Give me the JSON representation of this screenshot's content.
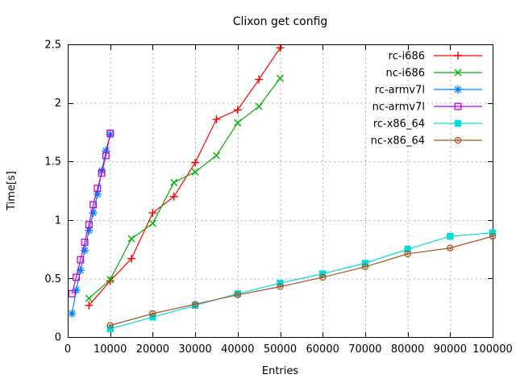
{
  "chart_data": {
    "type": "line",
    "title": "Clixon get config",
    "xlabel": "Entries",
    "ylabel": "Time[s]",
    "xlim": [
      0,
      100000
    ],
    "ylim": [
      0,
      2.5
    ],
    "xticks": [
      0,
      10000,
      20000,
      30000,
      40000,
      50000,
      60000,
      70000,
      80000,
      90000,
      100000
    ],
    "xtick_labels": [
      "0",
      "10000",
      "20000",
      "30000",
      "40000",
      "50000",
      "60000",
      "70000",
      "80000",
      "90000",
      "100000"
    ],
    "yticks": [
      0,
      0.5,
      1,
      1.5,
      2,
      2.5
    ],
    "ytick_labels": [
      "0",
      "0.5",
      "1",
      "1.5",
      "2",
      "2.5"
    ],
    "grid": true,
    "legend_position": "top-right-inside",
    "series": [
      {
        "name": "rc-i686",
        "color": "#ff0000",
        "marker": "plus",
        "x": [
          5000,
          10000,
          15000,
          20000,
          25000,
          30000,
          35000,
          40000,
          45000,
          50000
        ],
        "y": [
          0.27,
          0.48,
          0.67,
          1.06,
          1.2,
          1.49,
          1.86,
          1.94,
          2.2,
          2.47
        ]
      },
      {
        "name": "nc-i686",
        "color": "#00b000",
        "marker": "cross",
        "x": [
          5000,
          10000,
          15000,
          20000,
          25000,
          30000,
          35000,
          40000,
          45000,
          50000
        ],
        "y": [
          0.33,
          0.49,
          0.84,
          0.97,
          1.32,
          1.41,
          1.55,
          1.83,
          1.97,
          2.21
        ]
      },
      {
        "name": "rc-armv7l",
        "color": "#0080ff",
        "marker": "star",
        "x": [
          1000,
          2000,
          3000,
          4000,
          5000,
          6000,
          7000,
          8000,
          9000,
          10000
        ],
        "y": [
          0.2,
          0.4,
          0.57,
          0.74,
          0.91,
          1.06,
          1.22,
          1.42,
          1.59,
          1.73
        ]
      },
      {
        "name": "nc-armv7l",
        "color": "#c000e0",
        "marker": "square-open",
        "x": [
          1000,
          2000,
          3000,
          4000,
          5000,
          6000,
          7000,
          8000,
          9000,
          10000
        ],
        "y": [
          0.37,
          0.51,
          0.66,
          0.81,
          0.96,
          1.13,
          1.27,
          1.4,
          1.55,
          1.74
        ]
      },
      {
        "name": "rc-x86_64",
        "color": "#00dddd",
        "marker": "square-filled",
        "x": [
          10000,
          20000,
          30000,
          40000,
          50000,
          60000,
          70000,
          80000,
          90000,
          100000
        ],
        "y": [
          0.07,
          0.17,
          0.27,
          0.37,
          0.46,
          0.54,
          0.63,
          0.75,
          0.86,
          0.89
        ]
      },
      {
        "name": "nc-x86_64",
        "color": "#a8541c",
        "marker": "circle-dot",
        "x": [
          10000,
          20000,
          30000,
          40000,
          50000,
          60000,
          70000,
          80000,
          90000,
          100000
        ],
        "y": [
          0.1,
          0.2,
          0.28,
          0.36,
          0.43,
          0.51,
          0.6,
          0.71,
          0.76,
          0.86
        ]
      }
    ]
  },
  "style": {
    "background": "#ffffff",
    "grid_color": "#b0b0b0",
    "axis_color": "#000000",
    "text_color": "#000000"
  }
}
